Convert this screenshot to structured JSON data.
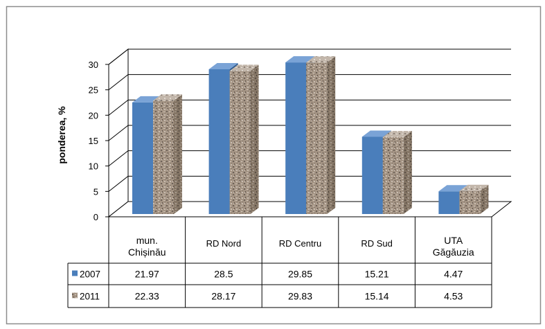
{
  "chart_data": {
    "type": "bar",
    "style": "3d-clustered-column-with-data-table",
    "ylabel": "ponderea, %",
    "ylim": [
      0,
      30
    ],
    "yticks": [
      0,
      5,
      10,
      15,
      20,
      25,
      30
    ],
    "grid": true,
    "categories": [
      "mun. Chișinău",
      "RD Nord",
      "RD Centru",
      "RD Sud",
      "UTA Găgăuzia"
    ],
    "series": [
      {
        "name": "2007",
        "values": [
          21.97,
          28.5,
          29.85,
          15.21,
          4.47
        ],
        "color": "#4a7ebb"
      },
      {
        "name": "2011",
        "values": [
          22.33,
          28.17,
          29.83,
          15.14,
          4.53
        ],
        "color": "#a09080"
      }
    ],
    "table": {
      "rows": [
        {
          "label": "2007",
          "cells": [
            "21.97",
            "28.5",
            "29.85",
            "15.21",
            "4.47"
          ]
        },
        {
          "label": "2011",
          "cells": [
            "22.33",
            "28.17",
            "29.83",
            "15.14",
            "4.53"
          ]
        }
      ]
    }
  }
}
